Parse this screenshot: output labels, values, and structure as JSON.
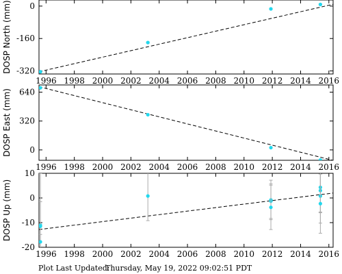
{
  "colors": {
    "point": "#22d8ee",
    "error_bar": "#aaaaaa",
    "trend": "#000000",
    "frame": "#000000",
    "background": "#ffffff"
  },
  "footer": {
    "label": "Plot Last Updated:",
    "value": "Thursday, May 19, 2022 09:02:51 PDT"
  },
  "chart_data": [
    {
      "type": "scatter",
      "ylabel": "DOSP North (mm)",
      "xlim": [
        1995.5,
        2016.3
      ],
      "ylim": [
        -335,
        30
      ],
      "x_ticks": [
        1996,
        1998,
        2000,
        2002,
        2004,
        2006,
        2008,
        2010,
        2012,
        2014,
        2016
      ],
      "y_ticks": [
        0,
        -160,
        -320
      ],
      "points": [
        {
          "x": 1995.6,
          "y": -324,
          "err": 3
        },
        {
          "x": 2003.2,
          "y": -180,
          "err": 3
        },
        {
          "x": 2011.9,
          "y": -14,
          "err": 3
        },
        {
          "x": 2015.4,
          "y": 8,
          "err": 3
        }
      ],
      "trend": {
        "x": [
          1995.5,
          2016.3
        ],
        "y": [
          -324,
          9
        ]
      }
    },
    {
      "type": "scatter",
      "ylabel": "DOSP East (mm)",
      "xlim": [
        1995.5,
        2016.3
      ],
      "ylim": [
        -115,
        720
      ],
      "x_ticks": [
        1996,
        1998,
        2000,
        2002,
        2004,
        2006,
        2008,
        2010,
        2012,
        2014,
        2016
      ],
      "y_ticks": [
        640,
        320,
        0
      ],
      "points": [
        {
          "x": 1995.6,
          "y": 688,
          "err": 4
        },
        {
          "x": 2003.2,
          "y": 390,
          "err": 4
        },
        {
          "x": 2011.9,
          "y": 25,
          "err": 4
        },
        {
          "x": 2015.4,
          "y": -112,
          "err": 4
        }
      ],
      "trend": {
        "x": [
          1995.5,
          2016.3
        ],
        "y": [
          700,
          -116
        ]
      }
    },
    {
      "type": "scatter",
      "ylabel": "DOSP Up (mm)",
      "xlim": [
        1995.5,
        2016.3
      ],
      "ylim": [
        -20,
        10
      ],
      "x_ticks": [
        1996,
        1998,
        2000,
        2002,
        2004,
        2006,
        2008,
        2010,
        2012,
        2014,
        2016
      ],
      "y_ticks": [
        10,
        0,
        -10,
        -20
      ],
      "points": [
        {
          "x": 1995.6,
          "y": -11,
          "err": 21
        },
        {
          "x": 1995.6,
          "y": -11.5,
          "err": 10
        },
        {
          "x": 1995.6,
          "y": -17.8,
          "err": 3
        },
        {
          "x": 2003.2,
          "y": 0.8,
          "err": 10
        },
        {
          "x": 2011.9,
          "y": -0.8,
          "err": 8
        },
        {
          "x": 2011.9,
          "y": -1.3,
          "err": 7
        },
        {
          "x": 2011.9,
          "y": -3.8,
          "err": 9
        },
        {
          "x": 2015.4,
          "y": 4.3,
          "err": 10
        },
        {
          "x": 2015.4,
          "y": 3.0,
          "err": 9
        },
        {
          "x": 2015.4,
          "y": 0.8,
          "err": 11
        },
        {
          "x": 2015.4,
          "y": -2.3,
          "err": 12
        }
      ],
      "trend": {
        "x": [
          1995.5,
          2016.3
        ],
        "y": [
          -12.8,
          2.0
        ]
      }
    }
  ]
}
